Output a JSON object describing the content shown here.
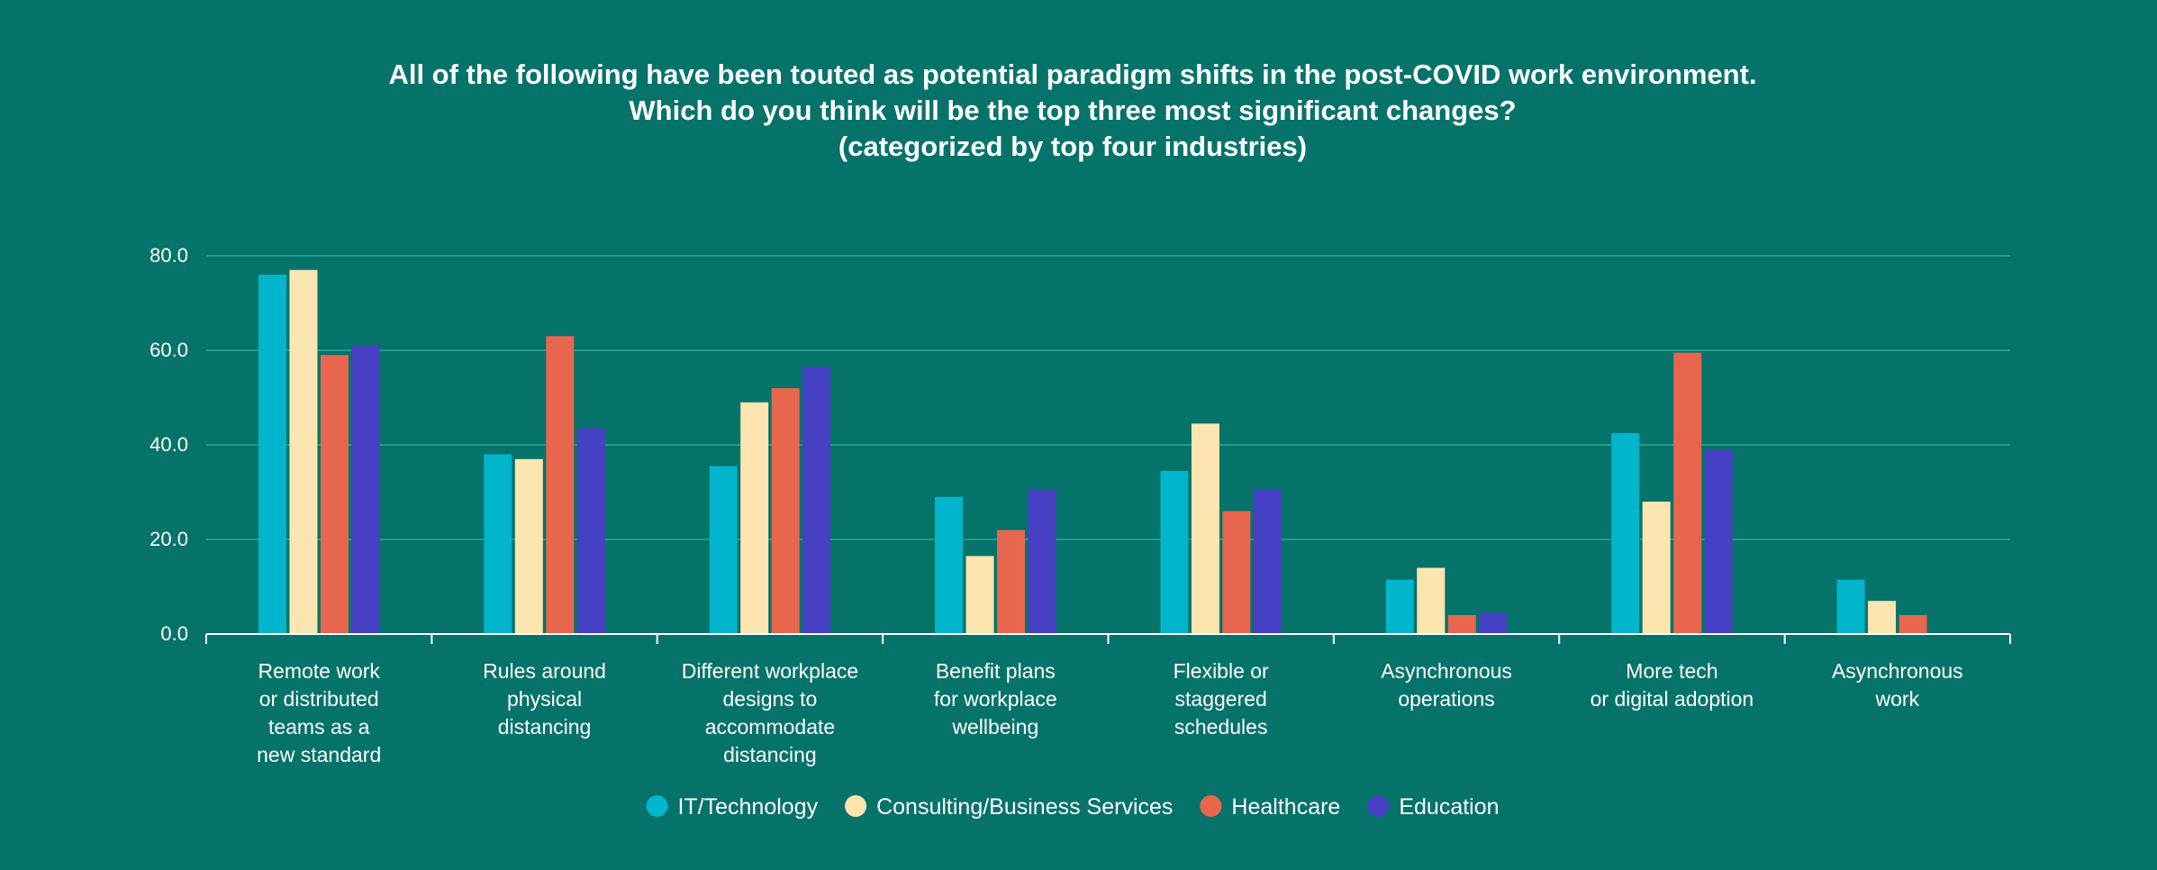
{
  "chart_data": {
    "type": "bar",
    "title_lines": [
      "All of the following have been touted as potential paradigm shifts in the post-COVID work environment.",
      "Which do you think will be the top three most significant changes?",
      "(categorized by top four industries)"
    ],
    "categories": [
      [
        "Remote work",
        "or distributed",
        "teams as a",
        "new standard"
      ],
      [
        "Rules around",
        "physical",
        "distancing"
      ],
      [
        "Different workplace",
        "designs to",
        "accommodate",
        "distancing"
      ],
      [
        "Benefit plans",
        "for workplace",
        "wellbeing"
      ],
      [
        "Flexible or",
        "staggered",
        "schedules"
      ],
      [
        "Asynchronous",
        "operations"
      ],
      [
        "More tech",
        "or digital adoption"
      ],
      [
        "Asynchronous",
        "work"
      ]
    ],
    "series": [
      {
        "name": "IT/Technology",
        "color": "#00b5cc",
        "values": [
          76,
          38,
          35.5,
          29,
          34.5,
          11.5,
          42.5,
          11.5
        ]
      },
      {
        "name": "Consulting/Business Services",
        "color": "#fde5b0",
        "values": [
          77,
          37,
          49,
          16.5,
          44.5,
          14,
          28,
          7
        ]
      },
      {
        "name": "Healthcare",
        "color": "#e8664e",
        "values": [
          59,
          63,
          52,
          22,
          26,
          4,
          59.5,
          4
        ]
      },
      {
        "name": "Education",
        "color": "#4640c4",
        "values": [
          61,
          43.5,
          56.5,
          30.5,
          30.5,
          4.5,
          39,
          0
        ]
      }
    ],
    "yticks": [
      "0.0",
      "20.0",
      "40.0",
      "60.0",
      "80.0"
    ],
    "ylim": [
      0,
      80
    ],
    "grid": true,
    "legend_position": "bottom-center",
    "axis_color": "#ffffff",
    "grid_color": "#1f9a8f"
  }
}
